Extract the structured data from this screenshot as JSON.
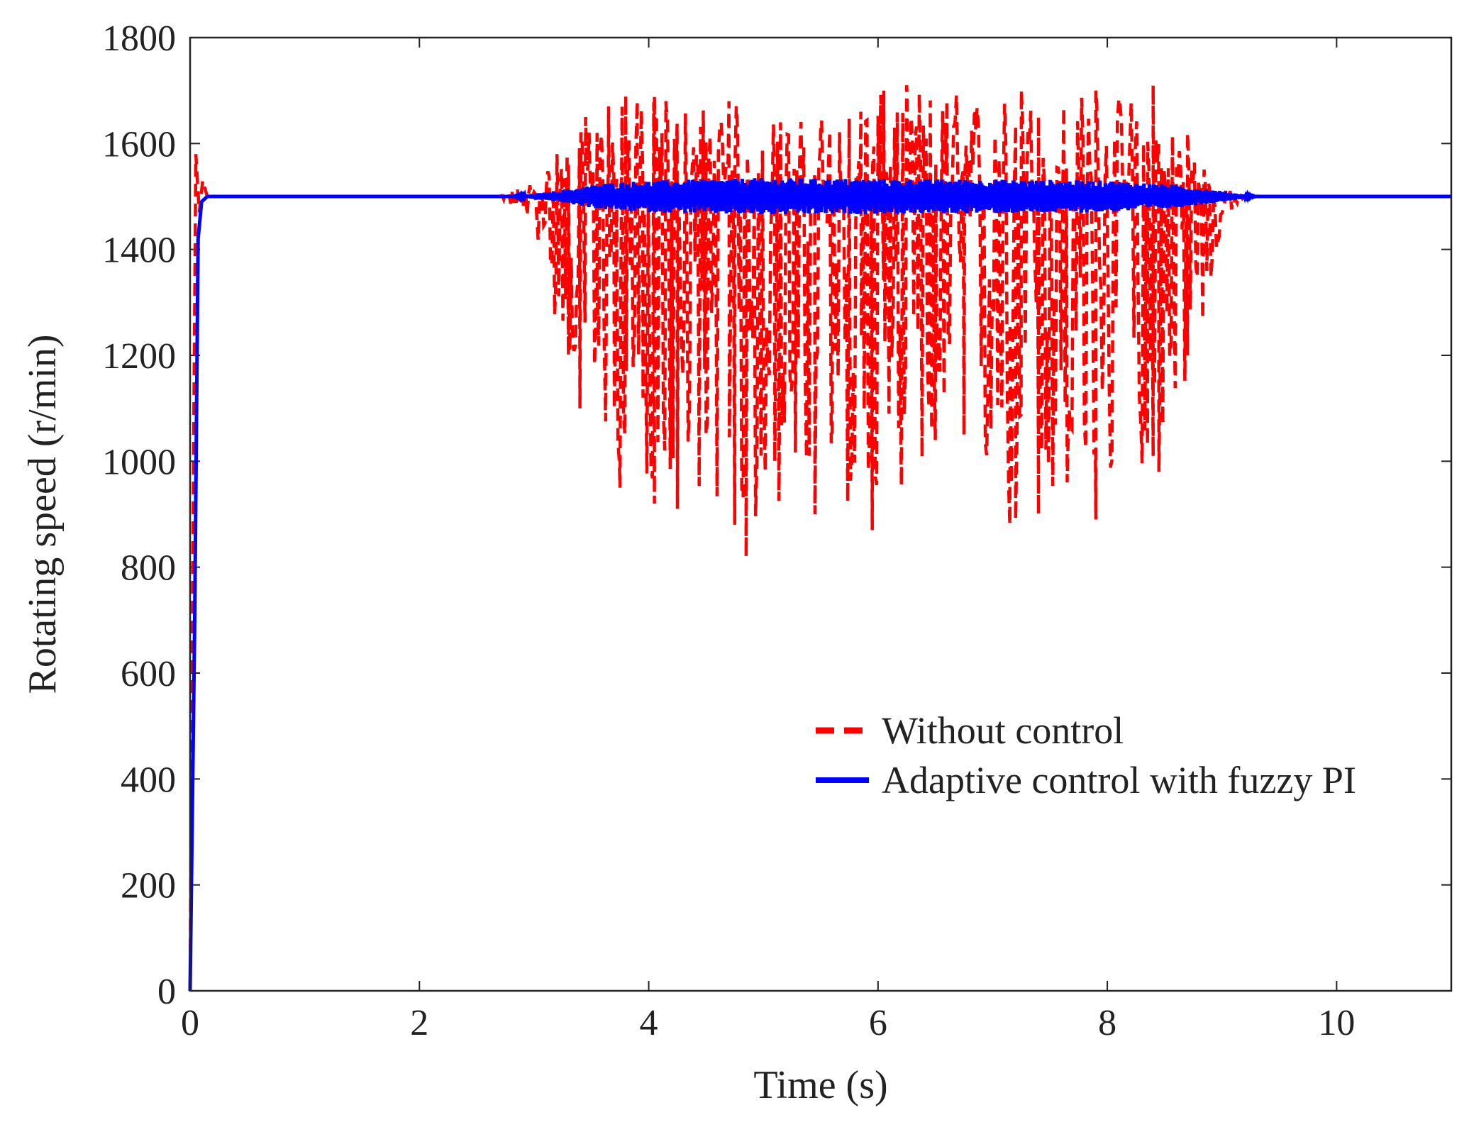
{
  "chart_data": {
    "type": "line",
    "title": "",
    "xlabel": "Time (s)",
    "ylabel": "Rotating speed (r/min)",
    "xlim": [
      0,
      11
    ],
    "ylim": [
      0,
      1800
    ],
    "x_ticks": [
      0,
      2,
      4,
      6,
      8,
      10
    ],
    "x_tick_labels": [
      "0",
      "2",
      "4",
      "6",
      "8",
      "10"
    ],
    "y_ticks": [
      0,
      200,
      400,
      600,
      800,
      1000,
      1200,
      1400,
      1600,
      1800
    ],
    "y_tick_labels": [
      "0",
      "200",
      "400",
      "600",
      "800",
      "1000",
      "1200",
      "1400",
      "1600",
      "1800"
    ],
    "grid": false,
    "legend_position": "lower-right",
    "series": [
      {
        "name": "Without control",
        "color": "#ff0000",
        "style": "dashed",
        "steady_state": 1500,
        "startup": [
          [
            0,
            0
          ],
          [
            0.03,
            1000
          ],
          [
            0.05,
            1580
          ],
          [
            0.08,
            1470
          ],
          [
            0.11,
            1530
          ],
          [
            0.15,
            1500
          ]
        ],
        "oscillation_start": 2.7,
        "oscillation_end": 9.2,
        "lower_envelope": [
          [
            2.7,
            1500
          ],
          [
            3.0,
            1450
          ],
          [
            3.2,
            1250
          ],
          [
            3.4,
            1150
          ],
          [
            3.7,
            1000
          ],
          [
            4.0,
            950
          ],
          [
            4.5,
            950
          ],
          [
            4.9,
            850
          ],
          [
            5.3,
            950
          ],
          [
            5.9,
            900
          ],
          [
            6.2,
            950
          ],
          [
            6.7,
            1000
          ],
          [
            7.2,
            900
          ],
          [
            7.9,
            920
          ],
          [
            8.4,
            1000
          ],
          [
            8.8,
            1200
          ],
          [
            9.0,
            1450
          ],
          [
            9.2,
            1500
          ]
        ],
        "upper_envelope": [
          [
            2.7,
            1500
          ],
          [
            3.0,
            1530
          ],
          [
            3.2,
            1580
          ],
          [
            3.5,
            1640
          ],
          [
            3.8,
            1680
          ],
          [
            4.1,
            1680
          ],
          [
            4.7,
            1680
          ],
          [
            5.2,
            1640
          ],
          [
            6.0,
            1690
          ],
          [
            6.2,
            1710
          ],
          [
            7.2,
            1690
          ],
          [
            7.9,
            1700
          ],
          [
            8.4,
            1690
          ],
          [
            8.8,
            1580
          ],
          [
            9.0,
            1520
          ],
          [
            9.2,
            1500
          ]
        ],
        "dips": [
          [
            3.3,
            1200
          ],
          [
            3.4,
            1100
          ],
          [
            3.7,
            1100
          ],
          [
            3.75,
            950
          ],
          [
            3.95,
            1120
          ],
          [
            4.05,
            920
          ],
          [
            4.25,
            910
          ],
          [
            4.5,
            1050
          ],
          [
            4.75,
            880
          ],
          [
            4.85,
            820
          ],
          [
            5.1,
            1000
          ],
          [
            5.45,
            900
          ],
          [
            5.6,
            1050
          ],
          [
            5.95,
            870
          ],
          [
            6.2,
            1020
          ],
          [
            6.5,
            1040
          ],
          [
            6.75,
            1050
          ],
          [
            7.15,
            880
          ],
          [
            7.2,
            890
          ],
          [
            7.4,
            900
          ],
          [
            7.65,
            960
          ],
          [
            7.9,
            890
          ],
          [
            8.35,
            1030
          ],
          [
            8.45,
            980
          ],
          [
            8.7,
            1200
          ]
        ],
        "peaks": [
          [
            3.2,
            1580
          ],
          [
            3.45,
            1650
          ],
          [
            3.55,
            1620
          ],
          [
            3.65,
            1670
          ],
          [
            3.8,
            1690
          ],
          [
            3.9,
            1680
          ],
          [
            4.05,
            1690
          ],
          [
            4.15,
            1680
          ],
          [
            4.7,
            1680
          ],
          [
            5.15,
            1640
          ],
          [
            5.5,
            1630
          ],
          [
            5.85,
            1660
          ],
          [
            6.05,
            1700
          ],
          [
            6.25,
            1710
          ],
          [
            6.6,
            1680
          ],
          [
            6.85,
            1660
          ],
          [
            7.25,
            1700
          ],
          [
            7.4,
            1650
          ],
          [
            7.9,
            1700
          ],
          [
            8.2,
            1620
          ],
          [
            8.4,
            1710
          ],
          [
            8.7,
            1620
          ]
        ]
      },
      {
        "name": "Adaptive control with fuzzy PI",
        "color": "#0000ff",
        "style": "solid",
        "steady_state": 1500,
        "startup": [
          [
            0,
            0
          ],
          [
            0.04,
            700
          ],
          [
            0.07,
            1420
          ],
          [
            0.1,
            1490
          ],
          [
            0.15,
            1500
          ]
        ],
        "oscillation_start": 2.8,
        "oscillation_end": 9.3,
        "amplitude_envelope": [
          [
            2.8,
            0
          ],
          [
            3.2,
            10
          ],
          [
            3.6,
            25
          ],
          [
            4.0,
            30
          ],
          [
            5.0,
            35
          ],
          [
            6.0,
            33
          ],
          [
            7.0,
            32
          ],
          [
            8.0,
            30
          ],
          [
            8.6,
            22
          ],
          [
            9.0,
            10
          ],
          [
            9.3,
            0
          ]
        ]
      }
    ]
  }
}
